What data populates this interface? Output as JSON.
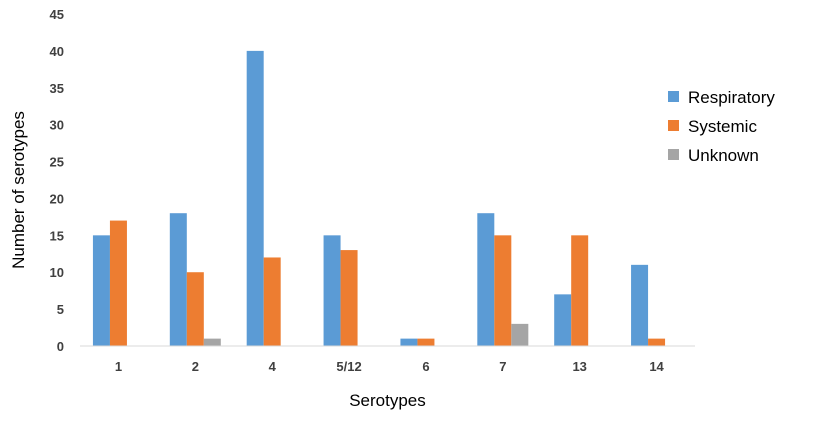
{
  "chart_data": {
    "type": "bar",
    "xlabel": "Serotypes",
    "ylabel": "Number of serotypes",
    "categories": [
      "1",
      "2",
      "4",
      "5/12",
      "6",
      "7",
      "13",
      "14"
    ],
    "series": [
      {
        "name": "Respiratory",
        "color": "#5B9BD5",
        "values": [
          15,
          18,
          40,
          15,
          1,
          18,
          7,
          11
        ]
      },
      {
        "name": "Systemic",
        "color": "#ED7D31",
        "values": [
          17,
          10,
          12,
          13,
          1,
          15,
          15,
          1
        ]
      },
      {
        "name": "Unknown",
        "color": "#A5A5A5",
        "values": [
          0,
          1,
          0,
          0,
          0,
          3,
          0,
          0
        ]
      }
    ],
    "ylim": [
      0,
      45
    ],
    "yticks": [
      0,
      5,
      10,
      15,
      20,
      25,
      30,
      35,
      40,
      45
    ],
    "grid": false,
    "legend_position": "right"
  }
}
